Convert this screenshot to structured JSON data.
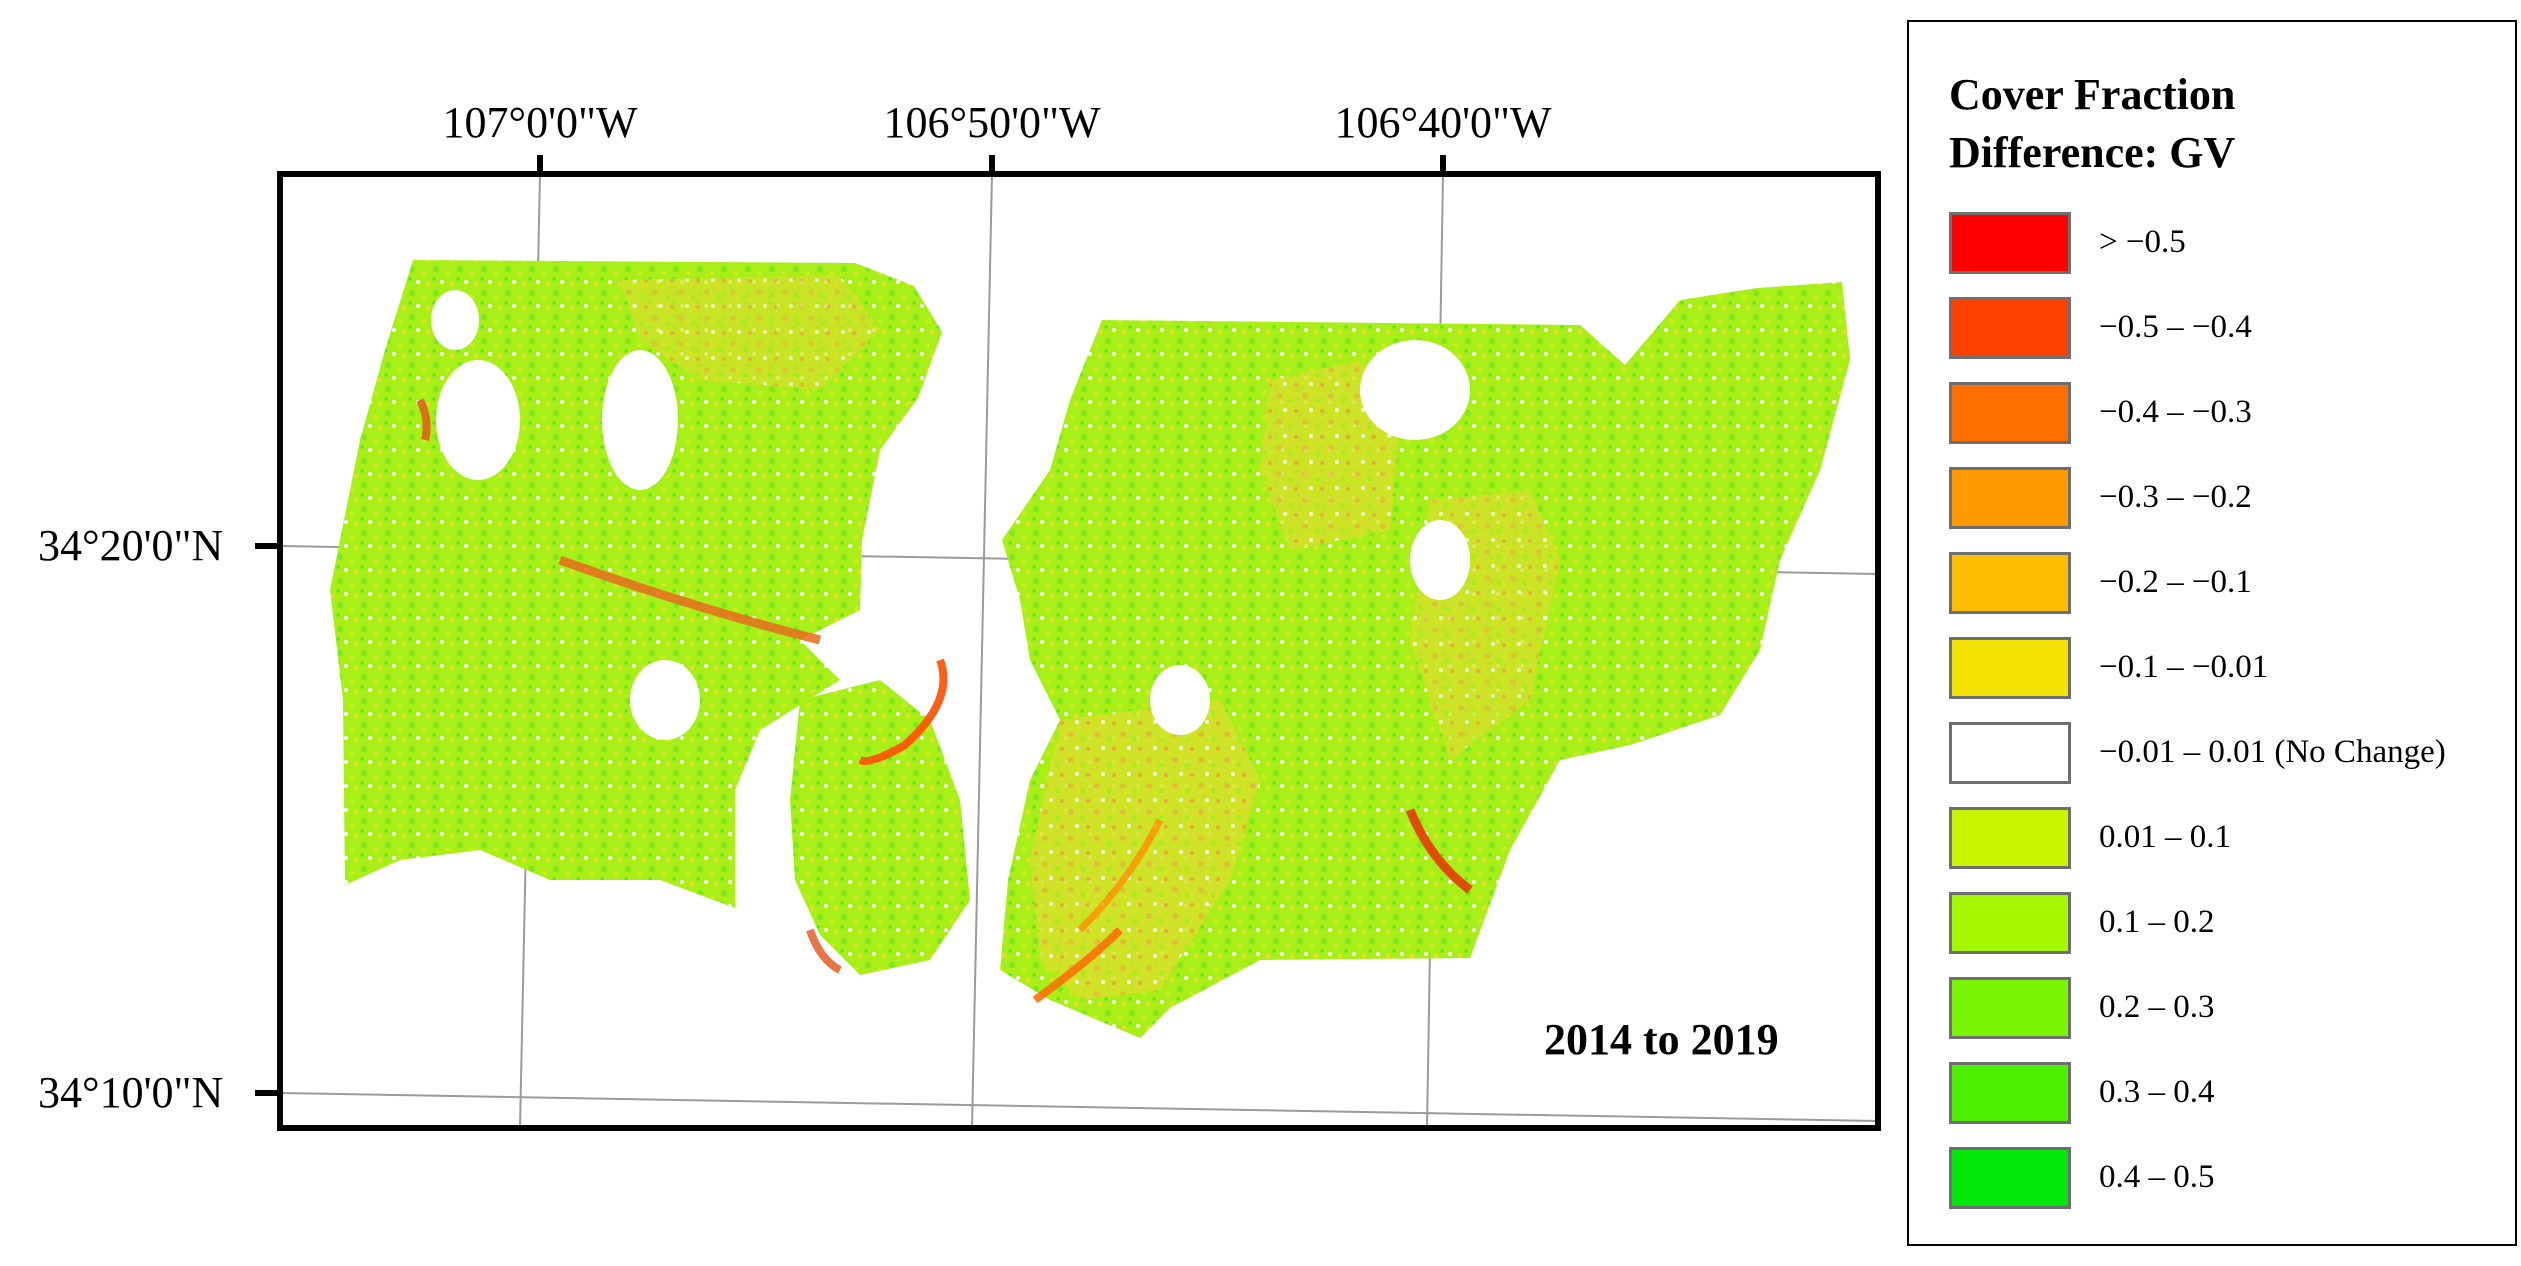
{
  "map": {
    "period_label": "2014 to 2019",
    "longitude_labels": [
      "107°0'0\"W",
      "106°50'0\"W",
      "106°40'0\"W"
    ],
    "latitude_labels": [
      "34°20'0\"N",
      "34°10'0\"N"
    ]
  },
  "legend": {
    "title": "Cover Fraction\nDifference: GV",
    "items": [
      {
        "label": "> −0.5",
        "color": "#ff0000"
      },
      {
        "label": "−0.5 – −0.4",
        "color": "#ff4000"
      },
      {
        "label": "−0.4 – −0.3",
        "color": "#ff7000"
      },
      {
        "label": "−0.3 – −0.2",
        "color": "#ff9a00"
      },
      {
        "label": "−0.2 – −0.1",
        "color": "#ffbe00"
      },
      {
        "label": "−0.1 – −0.01",
        "color": "#f4e200"
      },
      {
        "label": "−0.01 – 0.01 (No Change)",
        "color": "#ffffff"
      },
      {
        "label": "0.01 – 0.1",
        "color": "#c8f500"
      },
      {
        "label": "0.1 – 0.2",
        "color": "#a4f700"
      },
      {
        "label": "0.2 – 0.3",
        "color": "#78f500"
      },
      {
        "label": "0.3 – 0.4",
        "color": "#4cf000"
      },
      {
        "label": "0.4 – 0.5",
        "color": "#00e80a"
      }
    ]
  }
}
